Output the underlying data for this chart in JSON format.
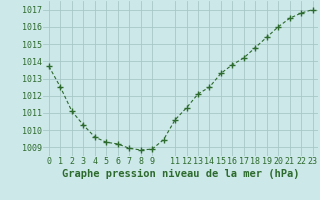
{
  "xlabel": "Graphe pression niveau de la mer (hPa)",
  "x_values": [
    0,
    1,
    2,
    3,
    4,
    5,
    6,
    7,
    8,
    9,
    10,
    11,
    12,
    13,
    14,
    15,
    16,
    17,
    18,
    19,
    20,
    21,
    22,
    23
  ],
  "y_values": [
    1013.7,
    1012.5,
    1011.1,
    1010.3,
    1009.6,
    1009.3,
    1009.2,
    1008.95,
    1008.85,
    1008.9,
    1009.45,
    1010.6,
    1011.3,
    1012.1,
    1012.5,
    1013.3,
    1013.8,
    1014.2,
    1014.8,
    1015.4,
    1016.0,
    1016.5,
    1016.8,
    1017.0
  ],
  "line_color": "#2d6a2d",
  "marker": "+",
  "marker_size": 4,
  "line_width": 0.8,
  "bg_color": "#cce8e8",
  "grid_color": "#a8c8c8",
  "tick_label_color": "#2d6a2d",
  "xlabel_color": "#2d6a2d",
  "xlabel_fontsize": 7.5,
  "tick_fontsize": 6,
  "ylim_min": 1008.5,
  "ylim_max": 1017.5,
  "ytick_values": [
    1009,
    1010,
    1011,
    1012,
    1013,
    1014,
    1015,
    1016,
    1017
  ],
  "xtick_values": [
    0,
    1,
    2,
    3,
    4,
    5,
    6,
    7,
    8,
    9,
    11,
    12,
    13,
    14,
    15,
    16,
    17,
    18,
    19,
    20,
    21,
    22,
    23
  ]
}
